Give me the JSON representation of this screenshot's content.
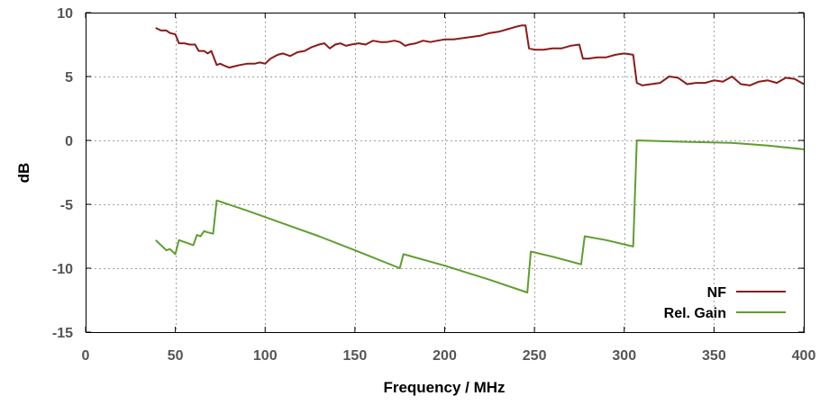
{
  "chart_data": {
    "type": "line",
    "title": "",
    "xlabel": "Frequency / MHz",
    "ylabel": "dB",
    "xlim": [
      0,
      400
    ],
    "ylim": [
      -15,
      10
    ],
    "xticks": [
      0,
      50,
      100,
      150,
      200,
      250,
      300,
      350,
      400
    ],
    "yticks": [
      -15,
      -10,
      -5,
      0,
      5,
      10
    ],
    "grid": true,
    "legend_position": "bottom-right",
    "series": [
      {
        "name": "NF",
        "color": "#8b1a1a",
        "x": [
          39,
          42,
          45,
          47,
          50,
          52,
          55,
          58,
          61,
          63,
          66,
          68,
          70,
          73,
          75,
          78,
          80,
          83,
          86,
          90,
          94,
          97,
          100,
          103,
          107,
          110,
          114,
          118,
          122,
          126,
          130,
          133,
          136,
          139,
          142,
          145,
          148,
          152,
          156,
          160,
          164,
          168,
          172,
          175,
          178,
          180,
          184,
          188,
          192,
          196,
          200,
          205,
          210,
          215,
          220,
          225,
          230,
          235,
          240,
          243,
          245,
          247,
          250,
          255,
          260,
          265,
          270,
          275,
          277,
          280,
          285,
          290,
          295,
          300,
          305,
          307,
          310,
          315,
          320,
          325,
          330,
          335,
          340,
          345,
          350,
          355,
          360,
          365,
          370,
          375,
          380,
          385,
          390,
          395,
          400
        ],
        "y": [
          8.8,
          8.6,
          8.6,
          8.4,
          8.3,
          7.6,
          7.6,
          7.5,
          7.5,
          7.0,
          7.0,
          6.8,
          7.0,
          5.9,
          6.0,
          5.8,
          5.7,
          5.8,
          5.9,
          6.0,
          6.0,
          6.1,
          6.0,
          6.4,
          6.7,
          6.8,
          6.6,
          6.9,
          7.0,
          7.3,
          7.5,
          7.6,
          7.2,
          7.5,
          7.6,
          7.4,
          7.5,
          7.6,
          7.5,
          7.8,
          7.7,
          7.7,
          7.8,
          7.7,
          7.4,
          7.5,
          7.6,
          7.8,
          7.7,
          7.8,
          7.9,
          7.9,
          8.0,
          8.1,
          8.2,
          8.4,
          8.5,
          8.7,
          8.9,
          9.0,
          9.0,
          7.2,
          7.1,
          7.1,
          7.2,
          7.2,
          7.4,
          7.5,
          6.4,
          6.4,
          6.5,
          6.5,
          6.7,
          6.8,
          6.7,
          4.5,
          4.3,
          4.4,
          4.5,
          5.0,
          4.9,
          4.4,
          4.5,
          4.5,
          4.7,
          4.6,
          5.0,
          4.4,
          4.3,
          4.6,
          4.7,
          4.5,
          4.9,
          4.8,
          4.4
        ]
      },
      {
        "name": "Rel. Gain",
        "color": "#5f9e2f",
        "x": [
          39,
          45,
          47,
          50,
          52,
          56,
          60,
          62,
          64,
          66,
          68,
          71,
          73,
          90,
          110,
          130,
          150,
          175,
          177,
          200,
          225,
          246,
          248,
          260,
          276,
          278,
          290,
          305,
          307,
          330,
          360,
          380,
          400
        ],
        "y": [
          -7.8,
          -8.6,
          -8.5,
          -8.9,
          -7.8,
          -8.0,
          -8.2,
          -7.4,
          -7.5,
          -7.1,
          -7.2,
          -7.3,
          -4.7,
          -5.5,
          -6.5,
          -7.5,
          -8.6,
          -10.0,
          -8.9,
          -9.8,
          -10.9,
          -11.9,
          -8.7,
          -9.1,
          -9.7,
          -7.5,
          -7.8,
          -8.3,
          0.0,
          -0.1,
          -0.2,
          -0.4,
          -0.7
        ]
      }
    ]
  }
}
